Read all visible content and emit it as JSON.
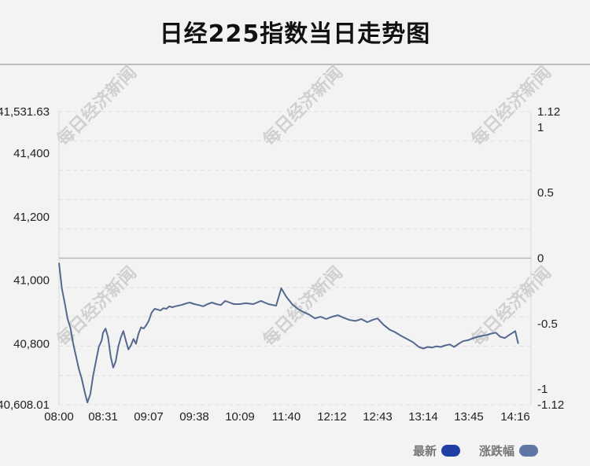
{
  "title": "日经225指数当日走势图",
  "legend": [
    {
      "label": "最新",
      "color": "#1f3fa6"
    },
    {
      "label": "涨跌幅",
      "color": "#5f76a6"
    }
  ],
  "watermark": "每日经济新闻",
  "line_color": "#55688f",
  "chart_data": {
    "type": "line",
    "title": "日经225指数当日走势图",
    "x_ticks": [
      "08:00",
      "08:31",
      "09:07",
      "09:38",
      "10:09",
      "11:40",
      "12:12",
      "12:43",
      "13:14",
      "13:45",
      "14:16"
    ],
    "y_left_ticks": [
      "41,531.63",
      "41,400",
      "41,200",
      "41,000",
      "40,800",
      "40,608.01"
    ],
    "y_left_tick_values": [
      41531.63,
      41400,
      41200,
      41000,
      40800,
      40608.01
    ],
    "y_right_ticks": [
      "1.12",
      "1",
      "0.5",
      "0",
      "-0.5",
      "-1",
      "-1.12"
    ],
    "y_right_tick_values": [
      1.12,
      1,
      0.5,
      0,
      -0.5,
      -1,
      -1.12
    ],
    "ylim": [
      40608.01,
      41531.63
    ],
    "y_right_lim": [
      -1.12,
      1.12
    ],
    "grid": true,
    "legend_position": "bottom-right",
    "series": [
      {
        "name": "最新",
        "x": [
          "08:00",
          "08:02",
          "08:04",
          "08:06",
          "08:08",
          "08:10",
          "08:12",
          "08:14",
          "08:16",
          "08:18",
          "08:20",
          "08:22",
          "08:24",
          "08:26",
          "08:28",
          "08:30",
          "08:31",
          "08:33",
          "08:35",
          "08:37",
          "08:39",
          "08:41",
          "08:43",
          "08:45",
          "08:47",
          "08:49",
          "08:51",
          "08:53",
          "08:55",
          "08:57",
          "08:59",
          "09:01",
          "09:03",
          "09:05",
          "09:07",
          "09:09",
          "09:11",
          "09:13",
          "09:15",
          "09:17",
          "09:19",
          "09:21",
          "09:23",
          "09:25",
          "09:27",
          "09:29",
          "09:31",
          "09:33",
          "09:35",
          "09:38",
          "09:41",
          "09:44",
          "09:47",
          "09:50",
          "09:53",
          "09:56",
          "09:59",
          "10:02",
          "10:05",
          "10:09",
          "10:20",
          "10:35",
          "10:50",
          "11:05",
          "11:20",
          "11:30",
          "11:40",
          "11:44",
          "11:48",
          "11:52",
          "11:56",
          "12:00",
          "12:04",
          "12:08",
          "12:12",
          "12:16",
          "12:20",
          "12:24",
          "12:28",
          "12:32",
          "12:36",
          "12:40",
          "12:43",
          "12:47",
          "12:51",
          "12:55",
          "12:59",
          "13:03",
          "13:07",
          "13:11",
          "13:14",
          "13:17",
          "13:20",
          "13:23",
          "13:26",
          "13:29",
          "13:32",
          "13:35",
          "13:38",
          "13:41",
          "13:45",
          "13:48",
          "13:51",
          "13:54",
          "13:57",
          "14:00",
          "14:03",
          "14:06",
          "14:09",
          "14:12",
          "14:16",
          "14:18"
        ],
        "values": [
          41055,
          40975,
          40930,
          40880,
          40850,
          40800,
          40760,
          40720,
          40690,
          40650,
          40615,
          40640,
          40700,
          40745,
          40790,
          40810,
          40835,
          40848,
          40820,
          40760,
          40725,
          40745,
          40790,
          40820,
          40840,
          40810,
          40782,
          40795,
          40815,
          40800,
          40832,
          40852,
          40848,
          40858,
          40872,
          40898,
          40910,
          40908,
          40905,
          40912,
          40910,
          40918,
          40915,
          40918,
          40920,
          40922,
          40925,
          40928,
          40930,
          40925,
          40922,
          40918,
          40925,
          40930,
          40925,
          40922,
          40935,
          40930,
          40925,
          40925,
          40928,
          40925,
          40935,
          40925,
          40920,
          40975,
          40948,
          40925,
          40910,
          40900,
          40892,
          40880,
          40885,
          40878,
          40885,
          40890,
          40882,
          40875,
          40872,
          40878,
          40868,
          40876,
          40880,
          40860,
          40845,
          40836,
          40825,
          40815,
          40805,
          40790,
          40785,
          40790,
          40788,
          40792,
          40790,
          40795,
          40798,
          40790,
          40800,
          40808,
          40812,
          40818,
          40822,
          40825,
          40828,
          40832,
          40835,
          40822,
          40818,
          40828,
          40840,
          40800
        ]
      }
    ]
  }
}
